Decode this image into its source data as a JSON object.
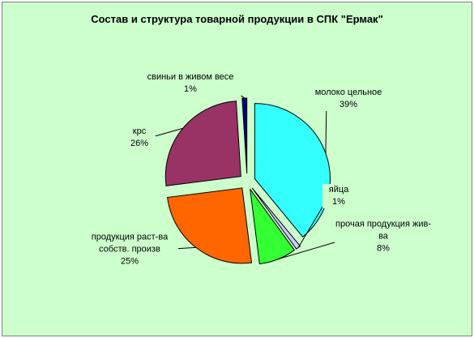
{
  "chart_data": {
    "type": "pie",
    "title": "Состав и структура товарной продукции в СПК \"Ермак\"",
    "categories": [
      "молоко цельное",
      "яйца",
      "прочая продукция жив-ва",
      "продукция раст-ва собств. произв",
      "крс",
      "свиньи в живом весе"
    ],
    "values": [
      39,
      1,
      8,
      25,
      26,
      1
    ],
    "value_labels": [
      "39%",
      "1%",
      "8%",
      "25%",
      "26%",
      "1%"
    ],
    "colors": [
      "#33ffff",
      "#ccccff",
      "#33ff33",
      "#ff6600",
      "#993366",
      "#000080"
    ]
  }
}
